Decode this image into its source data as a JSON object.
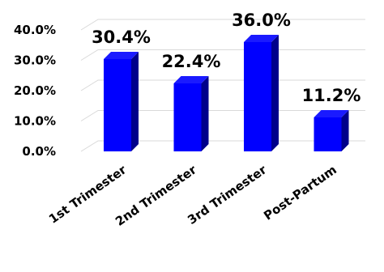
{
  "chart_data": {
    "type": "bar",
    "title": "",
    "xlabel": "",
    "ylabel": "",
    "categories": [
      "1st Trimester",
      "2nd Trimester",
      "3rd Trimester",
      "Post-Partum"
    ],
    "values": [
      30.4,
      22.4,
      36.0,
      11.2
    ],
    "data_labels": [
      "30.4%",
      "22.4%",
      "36.0%",
      "11.2%"
    ],
    "ylim": [
      0,
      40
    ],
    "y_ticks": [
      {
        "value": 0,
        "label": "0.0%"
      },
      {
        "value": 10,
        "label": "10.0%"
      },
      {
        "value": 20,
        "label": "20.0%"
      },
      {
        "value": 30,
        "label": "30.0%"
      },
      {
        "value": 40,
        "label": "40.0%"
      }
    ],
    "grid": true,
    "legend": "none",
    "bar_color": "#0000ff",
    "bar_side_color": "#00008b",
    "bar_top_color": "#1a1aff",
    "style": "3d"
  }
}
